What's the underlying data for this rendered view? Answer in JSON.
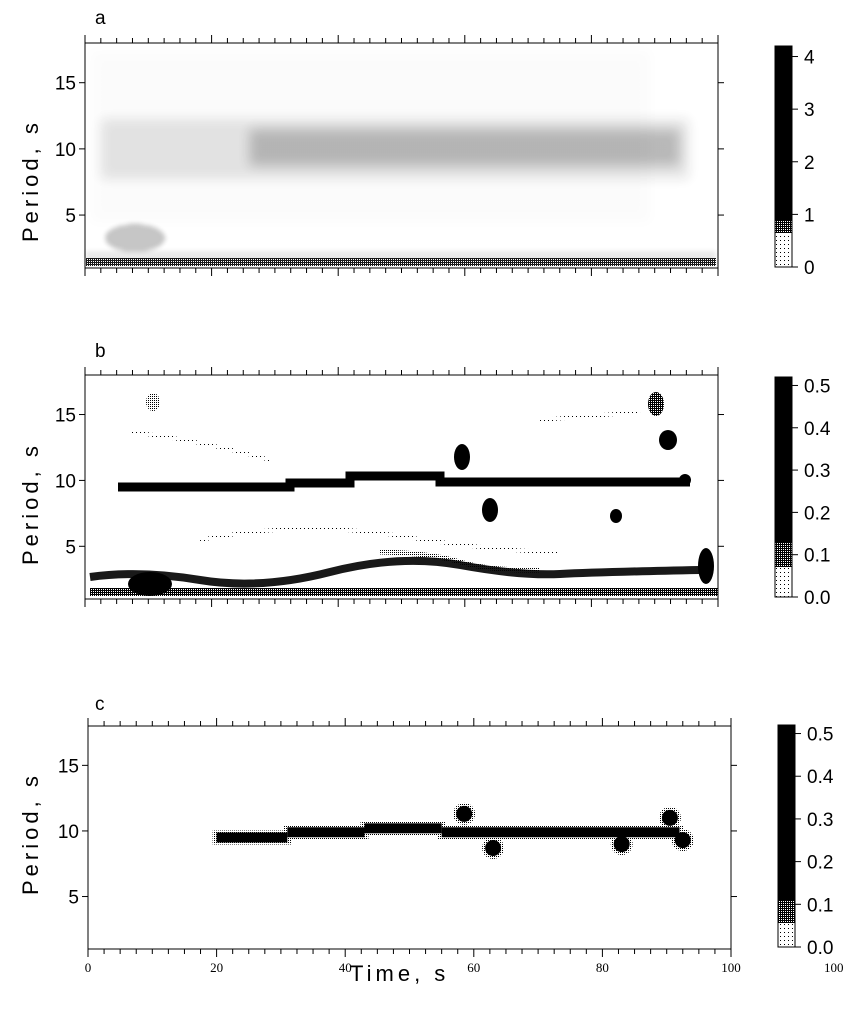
{
  "chart_data": [
    {
      "type": "heatmap",
      "panel_label": "a",
      "ylabel": "Period, s",
      "ylim": [
        1,
        18
      ],
      "xlim": [
        0,
        100
      ],
      "yticks": [
        "5",
        "10",
        "15"
      ],
      "colorbar_ticks": [
        "0",
        "1",
        "2",
        "3",
        "4"
      ],
      "colorbar_range": [
        0,
        4.2
      ],
      "ridges": [
        {
          "t_start": 5,
          "t_end": 95,
          "period": 10,
          "amplitude": 0.55
        },
        {
          "t_start": 1,
          "t_end": 98,
          "period": 1.5,
          "amplitude": 1.2
        },
        {
          "t_start": 5,
          "t_end": 15,
          "period": 3.2,
          "amplitude": 0.6
        }
      ]
    },
    {
      "type": "heatmap",
      "panel_label": "b",
      "ylabel": "Period, s",
      "ylim": [
        1,
        18
      ],
      "xlim": [
        0,
        100
      ],
      "yticks": [
        "5",
        "10",
        "15"
      ],
      "colorbar_ticks": [
        "0.0",
        "0.1",
        "0.2",
        "0.3",
        "0.4",
        "0.5"
      ],
      "colorbar_range": [
        0,
        0.52
      ],
      "ridges": [
        {
          "t_start": 5,
          "t_end": 30,
          "period": 9.6,
          "amplitude": 0.5
        },
        {
          "t_start": 30,
          "t_end": 43,
          "period": 9.9,
          "amplitude": 0.5
        },
        {
          "t_start": 43,
          "t_end": 55,
          "period": 10.2,
          "amplitude": 0.5
        },
        {
          "t_start": 55,
          "t_end": 93,
          "period": 9.9,
          "amplitude": 0.5
        },
        {
          "t_start": 0,
          "t_end": 100,
          "period": 2.5,
          "amplitude": 0.4
        }
      ]
    },
    {
      "type": "heatmap",
      "panel_label": "c",
      "ylabel": "Period, s",
      "xlabel": "Time, s",
      "ylim": [
        1,
        18
      ],
      "xlim": [
        0,
        100
      ],
      "xticks": [
        "0",
        "20",
        "40",
        "60",
        "80",
        "100"
      ],
      "yticks": [
        "5",
        "10",
        "15"
      ],
      "colorbar_ticks": [
        "0.0",
        "0.1",
        "0.2",
        "0.3",
        "0.4",
        "0.5"
      ],
      "colorbar_extra_label": "100",
      "colorbar_range": [
        0,
        0.52
      ],
      "ridges": [
        {
          "t_start": 20,
          "t_end": 31,
          "period": 9.5,
          "amplitude": 0.5
        },
        {
          "t_start": 31,
          "t_end": 43,
          "period": 9.9,
          "amplitude": 0.5
        },
        {
          "t_start": 43,
          "t_end": 55,
          "period": 10.2,
          "amplitude": 0.5
        },
        {
          "t_start": 55,
          "t_end": 92,
          "period": 9.9,
          "amplitude": 0.5
        }
      ],
      "blobs": [
        {
          "t": 58.5,
          "period": 11.3
        },
        {
          "t": 63,
          "period": 8.7
        },
        {
          "t": 83,
          "period": 9
        },
        {
          "t": 90.5,
          "period": 11
        },
        {
          "t": 92.5,
          "period": 9.3
        }
      ]
    }
  ]
}
